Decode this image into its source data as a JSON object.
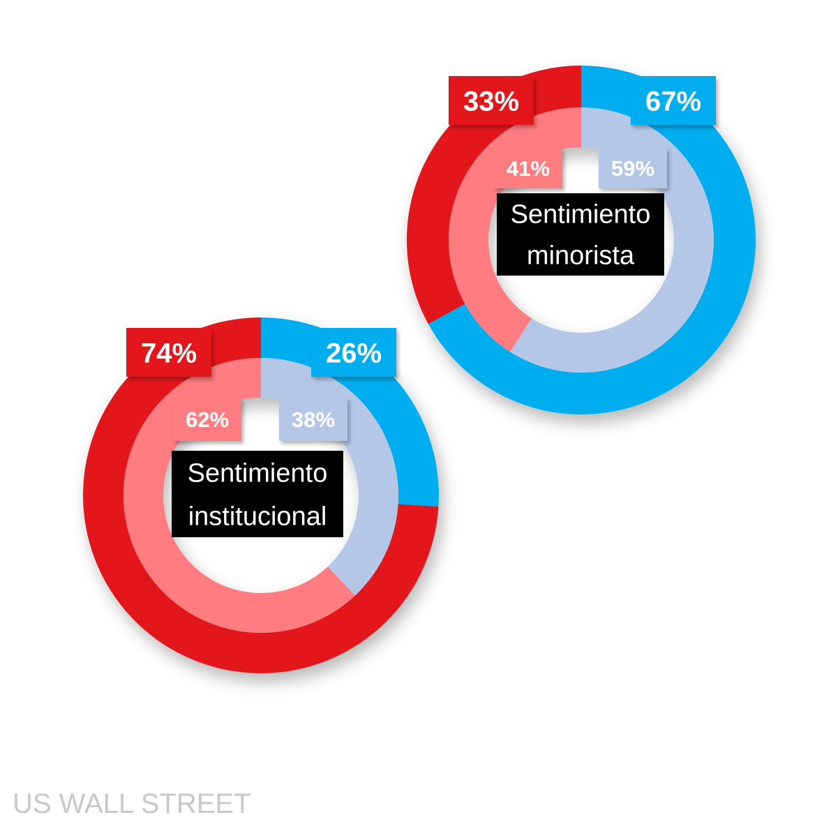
{
  "colors": {
    "outer_red": "#e3151f",
    "outer_blue": "#00adef",
    "inner_red": "#ff7c80",
    "inner_blue": "#b4c7e7",
    "center_box": "#000000",
    "footer": "#c8c8c8"
  },
  "chart_data": [
    {
      "type": "pie",
      "center_label": [
        "Sentimiento",
        "institucional"
      ],
      "outer_ring": [
        {
          "name": "",
          "value": 74,
          "label": "74%",
          "color": "#e3151f"
        },
        {
          "name": "",
          "value": 26,
          "label": "26%",
          "color": "#00adef"
        }
      ],
      "inner_ring": [
        {
          "name": "",
          "value": 62,
          "label": "62%",
          "color": "#ff7c80"
        },
        {
          "name": "",
          "value": 38,
          "label": "38%",
          "color": "#b4c7e7"
        }
      ]
    },
    {
      "type": "pie",
      "center_label": [
        "Sentimiento",
        "minorista"
      ],
      "outer_ring": [
        {
          "name": "",
          "value": 33,
          "label": "33%",
          "color": "#e3151f"
        },
        {
          "name": "",
          "value": 67,
          "label": "67%",
          "color": "#00adef"
        }
      ],
      "inner_ring": [
        {
          "name": "",
          "value": 41,
          "label": "41%",
          "color": "#ff7c80"
        },
        {
          "name": "",
          "value": 59,
          "label": "59%",
          "color": "#b4c7e7"
        }
      ]
    }
  ],
  "footer_text": "US WALL STREET"
}
